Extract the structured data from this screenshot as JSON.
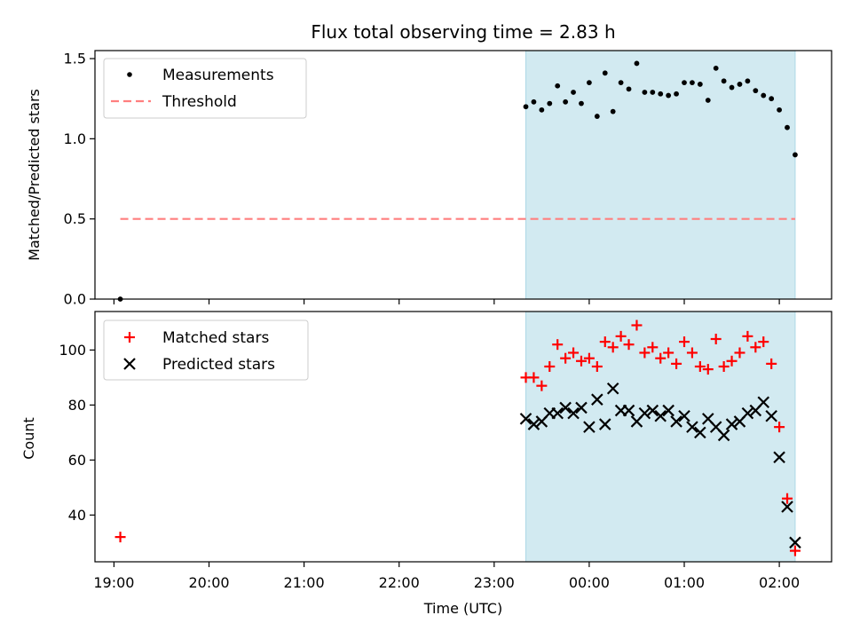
{
  "chart_data": {
    "title": "Flux total observing time = 2.83 h",
    "xlabel": "Time (UTC)",
    "x_tick_labels": [
      "19:00",
      "20:00",
      "21:00",
      "22:00",
      "23:00",
      "00:00",
      "01:00",
      "02:00"
    ],
    "x_ticks": [
      "19:00",
      "20:00",
      "21:00",
      "22:00",
      "23:00",
      "00:00",
      "01:00",
      "02:00"
    ],
    "xlim": [
      "18:48",
      "02:33"
    ],
    "shaded_region": {
      "start": "23:20",
      "end": "02:10",
      "color": "#add8e6"
    },
    "panels": [
      {
        "type": "scatter",
        "ylabel": "Matched/Predicted stars",
        "ylim": [
          0,
          1.55
        ],
        "y_ticks": [
          0.0,
          0.5,
          1.0,
          1.5
        ],
        "y_tick_labels": [
          "0.0",
          "0.5",
          "1.0",
          "1.5"
        ],
        "legend_position": "top-left",
        "series": [
          {
            "name": "Measurements",
            "marker": "dot",
            "color": "#000000",
            "points": [
              [
                "19:04",
                0.0
              ],
              [
                "23:20",
                1.2
              ],
              [
                "23:25",
                1.23
              ],
              [
                "23:30",
                1.18
              ],
              [
                "23:35",
                1.22
              ],
              [
                "23:40",
                1.33
              ],
              [
                "23:45",
                1.23
              ],
              [
                "23:50",
                1.29
              ],
              [
                "23:55",
                1.22
              ],
              [
                "00:00",
                1.35
              ],
              [
                "00:05",
                1.14
              ],
              [
                "00:10",
                1.41
              ],
              [
                "00:15",
                1.17
              ],
              [
                "00:20",
                1.35
              ],
              [
                "00:25",
                1.31
              ],
              [
                "00:30",
                1.47
              ],
              [
                "00:35",
                1.29
              ],
              [
                "00:40",
                1.29
              ],
              [
                "00:45",
                1.28
              ],
              [
                "00:50",
                1.27
              ],
              [
                "00:55",
                1.28
              ],
              [
                "01:00",
                1.35
              ],
              [
                "01:05",
                1.35
              ],
              [
                "01:10",
                1.34
              ],
              [
                "01:15",
                1.24
              ],
              [
                "01:20",
                1.44
              ],
              [
                "01:25",
                1.36
              ],
              [
                "01:30",
                1.32
              ],
              [
                "01:35",
                1.34
              ],
              [
                "01:40",
                1.36
              ],
              [
                "01:45",
                1.3
              ],
              [
                "01:50",
                1.27
              ],
              [
                "01:55",
                1.25
              ],
              [
                "02:00",
                1.18
              ],
              [
                "02:05",
                1.07
              ],
              [
                "02:10",
                0.9
              ]
            ]
          },
          {
            "name": "Threshold",
            "marker": "dashed-line",
            "color": "#ff7f7f",
            "points": [
              [
                "19:04",
                0.5
              ],
              [
                "02:10",
                0.5
              ]
            ]
          }
        ]
      },
      {
        "type": "scatter",
        "ylabel": "Count",
        "ylim": [
          23,
          114
        ],
        "y_ticks": [
          40,
          60,
          80,
          100
        ],
        "y_tick_labels": [
          "40",
          "60",
          "80",
          "100"
        ],
        "legend_position": "top-left",
        "series": [
          {
            "name": "Matched stars",
            "marker": "plus",
            "color": "#ff0000",
            "points": [
              [
                "19:04",
                32
              ],
              [
                "23:20",
                90
              ],
              [
                "23:25",
                90
              ],
              [
                "23:30",
                87
              ],
              [
                "23:35",
                94
              ],
              [
                "23:40",
                102
              ],
              [
                "23:45",
                97
              ],
              [
                "23:50",
                99
              ],
              [
                "23:55",
                96
              ],
              [
                "00:00",
                97
              ],
              [
                "00:05",
                94
              ],
              [
                "00:10",
                103
              ],
              [
                "00:15",
                101
              ],
              [
                "00:20",
                105
              ],
              [
                "00:25",
                102
              ],
              [
                "00:30",
                109
              ],
              [
                "00:35",
                99
              ],
              [
                "00:40",
                101
              ],
              [
                "00:45",
                97
              ],
              [
                "00:50",
                99
              ],
              [
                "00:55",
                95
              ],
              [
                "01:00",
                103
              ],
              [
                "01:05",
                99
              ],
              [
                "01:10",
                94
              ],
              [
                "01:15",
                93
              ],
              [
                "01:20",
                104
              ],
              [
                "01:25",
                94
              ],
              [
                "01:30",
                96
              ],
              [
                "01:35",
                99
              ],
              [
                "01:40",
                105
              ],
              [
                "01:45",
                101
              ],
              [
                "01:50",
                103
              ],
              [
                "01:55",
                95
              ],
              [
                "02:00",
                72
              ],
              [
                "02:05",
                46
              ],
              [
                "02:10",
                27
              ]
            ]
          },
          {
            "name": "Predicted stars",
            "marker": "x",
            "color": "#000000",
            "points": [
              [
                "23:20",
                75
              ],
              [
                "23:25",
                73
              ],
              [
                "23:30",
                74
              ],
              [
                "23:35",
                77
              ],
              [
                "23:40",
                77
              ],
              [
                "23:45",
                79
              ],
              [
                "23:50",
                77
              ],
              [
                "23:55",
                79
              ],
              [
                "00:00",
                72
              ],
              [
                "00:05",
                82
              ],
              [
                "00:10",
                73
              ],
              [
                "00:15",
                86
              ],
              [
                "00:20",
                78
              ],
              [
                "00:25",
                78
              ],
              [
                "00:30",
                74
              ],
              [
                "00:35",
                77
              ],
              [
                "00:40",
                78
              ],
              [
                "00:45",
                76
              ],
              [
                "00:50",
                78
              ],
              [
                "00:55",
                74
              ],
              [
                "01:00",
                76
              ],
              [
                "01:05",
                72
              ],
              [
                "01:10",
                70
              ],
              [
                "01:15",
                75
              ],
              [
                "01:20",
                72
              ],
              [
                "01:25",
                69
              ],
              [
                "01:30",
                73
              ],
              [
                "01:35",
                74
              ],
              [
                "01:40",
                77
              ],
              [
                "01:45",
                78
              ],
              [
                "01:50",
                81
              ],
              [
                "01:55",
                76
              ],
              [
                "02:00",
                61
              ],
              [
                "02:05",
                43
              ],
              [
                "02:10",
                30
              ]
            ]
          }
        ]
      }
    ]
  }
}
